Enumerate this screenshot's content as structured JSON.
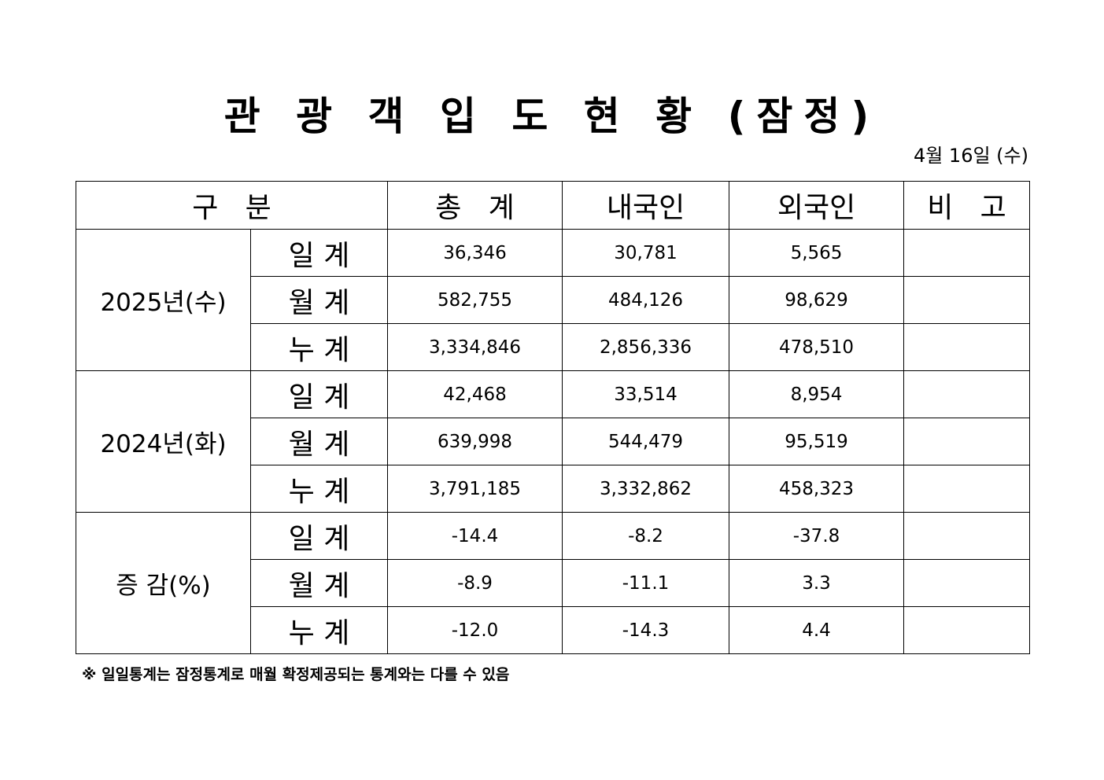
{
  "title": "관 광 객 입 도 현 황 (잠정)",
  "date": "4월 16일 (수)",
  "header": {
    "category": "구   분",
    "total": "총   계",
    "domestic": "내국인",
    "foreign": "외국인",
    "remarks": "비   고"
  },
  "groups": [
    {
      "label": "2025년(수)",
      "rows": [
        {
          "label": "일 계",
          "total": "36,346",
          "domestic": "30,781",
          "foreign": "5,565",
          "remarks": ""
        },
        {
          "label": "월 계",
          "total": "582,755",
          "domestic": "484,126",
          "foreign": "98,629",
          "remarks": ""
        },
        {
          "label": "누 계",
          "total": "3,334,846",
          "domestic": "2,856,336",
          "foreign": "478,510",
          "remarks": ""
        }
      ]
    },
    {
      "label": "2024년(화)",
      "rows": [
        {
          "label": "일 계",
          "total": "42,468",
          "domestic": "33,514",
          "foreign": "8,954",
          "remarks": ""
        },
        {
          "label": "월 계",
          "total": "639,998",
          "domestic": "544,479",
          "foreign": "95,519",
          "remarks": ""
        },
        {
          "label": "누 계",
          "total": "3,791,185",
          "domestic": "3,332,862",
          "foreign": "458,323",
          "remarks": ""
        }
      ]
    },
    {
      "label": "증 감(%)",
      "rows": [
        {
          "label": "일 계",
          "total": "-14.4",
          "domestic": "-8.2",
          "foreign": "-37.8",
          "remarks": ""
        },
        {
          "label": "월 계",
          "total": "-8.9",
          "domestic": "-11.1",
          "foreign": "3.3",
          "remarks": ""
        },
        {
          "label": "누 계",
          "total": "-12.0",
          "domestic": "-14.3",
          "foreign": "4.4",
          "remarks": ""
        }
      ]
    }
  ],
  "note": "※ 일일통계는 잠정통계로 매월 확정제공되는 통계와는 다를 수 있음"
}
